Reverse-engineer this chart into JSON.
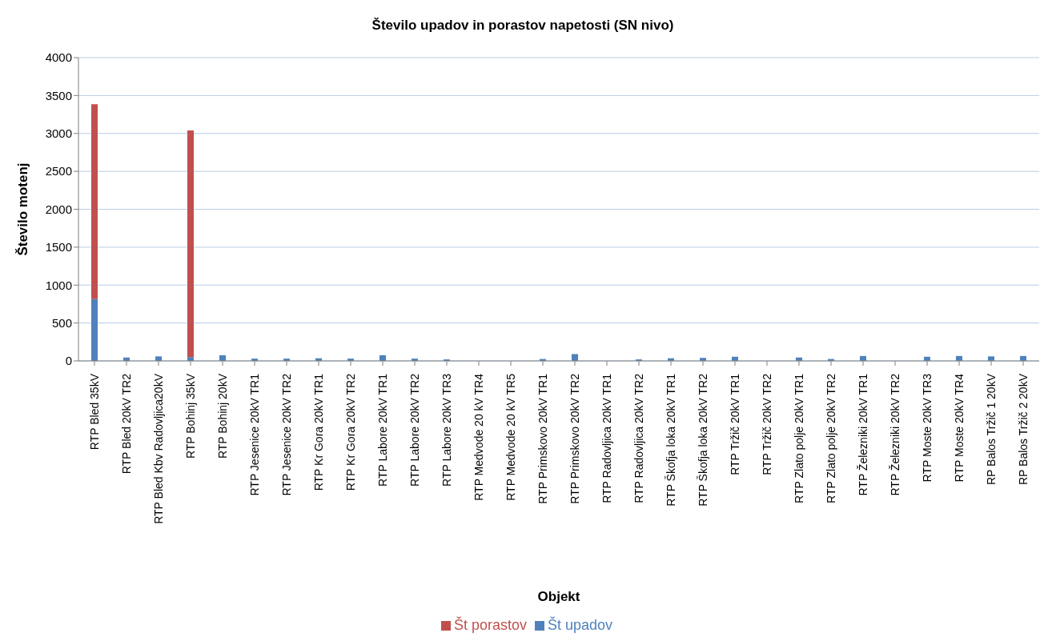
{
  "chart_data": {
    "type": "bar",
    "title": "Število upadov in porastov napetosti (SN nivo)",
    "xlabel": "Objekt",
    "ylabel": "Število motenj",
    "categories": [
      "RTP Bled 35kV",
      "RTP Bled 20kV TR2",
      "RTP Bled Kbv Radovljica20kV",
      "RTP Bohinj 35kV",
      "RTP Bohinj 20kV",
      "RTP Jesenice 20kV TR1",
      "RTP Jesenice 20kV TR2",
      "RTP Kr Gora 20kV TR1",
      "RTP Kr Gora 20kV TR2",
      "RTP Labore 20kV TR1",
      "RTP Labore 20kV TR2",
      "RTP Labore 20kV TR3",
      "RTP Medvode 20 kV TR4",
      "RTP Medvode 20 kV TR5",
      "RTP Primskovo 20kV TR1",
      "RTP Primskovo 20kV TR2",
      "RTP Radovljica 20kV TR1",
      "RTP Radovljica 20kV TR2",
      "RTP Škofja loka 20kV TR1",
      "RTP Škofja loka 20kV TR2",
      "RTP Tržič 20kV TR1",
      "RTP Tržič 20kV TR2",
      "RTP Zlato polje 20kV TR1",
      "RTP Zlato polje 20kV TR2",
      "RTP Železniki 20kV TR1",
      "RTP Železniki 20kV TR2",
      "RTP Moste 20kV TR3",
      "RTP Moste 20kV TR4",
      "RP Balos Tržič 1 20kV",
      "RP Balos Tržič 2 20kV"
    ],
    "series": [
      {
        "name": "Št upadov",
        "color": "#4f81bd",
        "values": [
          815,
          45,
          60,
          50,
          75,
          30,
          30,
          35,
          30,
          75,
          30,
          20,
          0,
          0,
          25,
          90,
          0,
          20,
          35,
          40,
          55,
          0,
          45,
          25,
          65,
          0,
          55,
          65,
          60,
          65
        ]
      },
      {
        "name": "Št porastov",
        "color": "#c0504d",
        "values": [
          2570,
          null,
          null,
          2990,
          null,
          null,
          null,
          null,
          null,
          null,
          null,
          null,
          null,
          null,
          null,
          null,
          null,
          null,
          null,
          null,
          null,
          null,
          null,
          null,
          null,
          null,
          null,
          null,
          null,
          null
        ]
      }
    ],
    "stacked": true,
    "ylim": [
      0,
      4000
    ],
    "yticks": [
      0,
      500,
      1000,
      1500,
      2000,
      2500,
      3000,
      3500,
      4000
    ],
    "grid": "y",
    "legend": "bottom"
  }
}
